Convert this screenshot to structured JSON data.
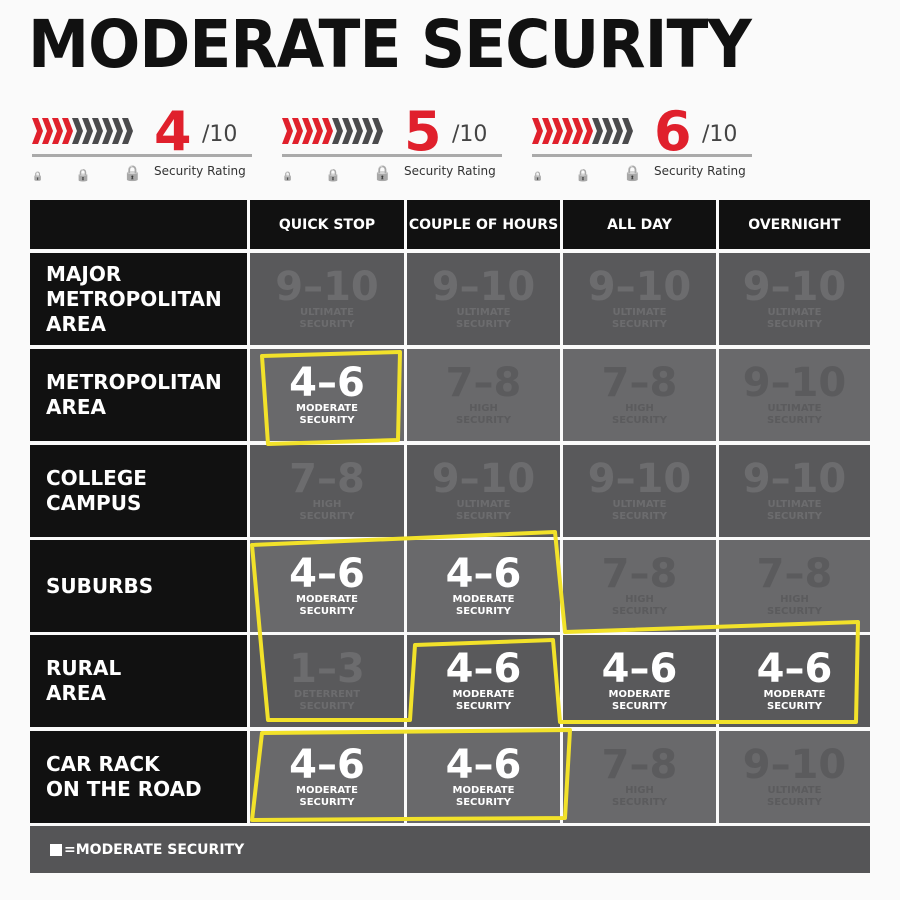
{
  "title": "MODERATE SECURITY",
  "ratings": [
    {
      "value": "4",
      "scale": "/10",
      "label": "Security Rating",
      "filled": 4,
      "total": 10
    },
    {
      "value": "5",
      "scale": "/10",
      "label": "Security Rating",
      "filled": 5,
      "total": 10
    },
    {
      "value": "6",
      "scale": "/10",
      "label": "Security Rating",
      "filled": 6,
      "total": 10
    }
  ],
  "colors": {
    "red": "#e0202c",
    "chevron_gray": "#4a4a4c",
    "highlight": "#f2e22a",
    "cell_dark": "#59595b",
    "cell_light": "#69696b"
  },
  "columns": [
    "QUICK STOP",
    "COUPLE OF HOURS",
    "ALL DAY",
    "OVERNIGHT"
  ],
  "rows": [
    {
      "label": "MAJOR\nMETROPOLITAN\nAREA",
      "cells": [
        {
          "v": "9–10",
          "l": "ULTIMATE\nSECURITY"
        },
        {
          "v": "9–10",
          "l": "ULTIMATE\nSECURITY"
        },
        {
          "v": "9–10",
          "l": "ULTIMATE\nSECURITY"
        },
        {
          "v": "9–10",
          "l": "ULTIMATE\nSECURITY"
        }
      ]
    },
    {
      "label": "METROPOLITAN\nAREA",
      "cells": [
        {
          "v": "4–6",
          "l": "MODERATE\nSECURITY",
          "active": true
        },
        {
          "v": "7–8",
          "l": "HIGH\nSECURITY"
        },
        {
          "v": "7–8",
          "l": "HIGH\nSECURITY"
        },
        {
          "v": "9–10",
          "l": "ULTIMATE\nSECURITY"
        }
      ]
    },
    {
      "label": "COLLEGE\nCAMPUS",
      "cells": [
        {
          "v": "7–8",
          "l": "HIGH\nSECURITY"
        },
        {
          "v": "9–10",
          "l": "ULTIMATE\nSECURITY"
        },
        {
          "v": "9–10",
          "l": "ULTIMATE\nSECURITY"
        },
        {
          "v": "9–10",
          "l": "ULTIMATE\nSECURITY"
        }
      ]
    },
    {
      "label": "SUBURBS",
      "cells": [
        {
          "v": "4–6",
          "l": "MODERATE\nSECURITY",
          "active": true
        },
        {
          "v": "4–6",
          "l": "MODERATE\nSECURITY",
          "active": true
        },
        {
          "v": "7–8",
          "l": "HIGH\nSECURITY"
        },
        {
          "v": "7–8",
          "l": "HIGH\nSECURITY"
        }
      ]
    },
    {
      "label": "RURAL\nAREA",
      "cells": [
        {
          "v": "1–3",
          "l": "DETERRENT\nSECURITY"
        },
        {
          "v": "4–6",
          "l": "MODERATE\nSECURITY",
          "active": true
        },
        {
          "v": "4–6",
          "l": "MODERATE\nSECURITY",
          "active": true
        },
        {
          "v": "4–6",
          "l": "MODERATE\nSECURITY",
          "active": true
        }
      ]
    },
    {
      "label": "CAR RACK\nON THE ROAD",
      "cells": [
        {
          "v": "4–6",
          "l": "MODERATE\nSECURITY",
          "active": true
        },
        {
          "v": "4–6",
          "l": "MODERATE\nSECURITY",
          "active": true
        },
        {
          "v": "7–8",
          "l": "HIGH\nSECURITY"
        },
        {
          "v": "9–10",
          "l": "ULTIMATE\nSECURITY"
        }
      ]
    }
  ],
  "legend": "=MODERATE SECURITY"
}
